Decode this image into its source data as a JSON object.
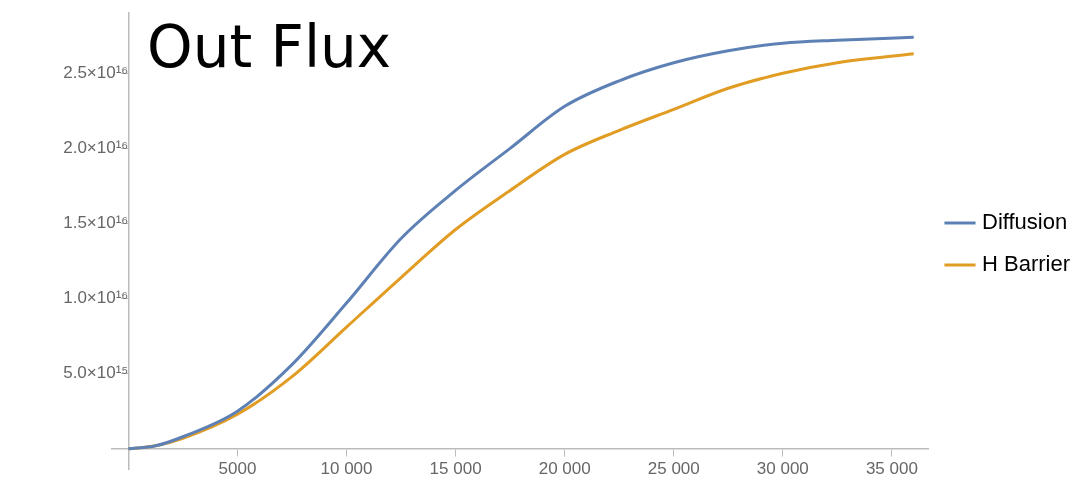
{
  "chart_data": {
    "type": "line",
    "title": "Out Flux",
    "x": [
      0,
      1250,
      2500,
      5000,
      7500,
      10000,
      12500,
      15000,
      17500,
      20000,
      22500,
      25000,
      27500,
      30000,
      32500,
      36000
    ],
    "series": [
      {
        "name": "Diffusion",
        "color": "#5e81b5",
        "values": [
          0,
          200000000000000.0,
          800000000000000.0,
          2500000000000000.0,
          5600000000000000.0,
          9700000000000000.0,
          1.4e+16,
          1.72e+16,
          2e+16,
          2.28e+16,
          2.45e+16,
          2.57e+16,
          2.65e+16,
          2.7e+16,
          2.72e+16,
          2.74e+16
        ]
      },
      {
        "name": "H Barrier",
        "color": "#e19c24",
        "values": [
          0,
          200000000000000.0,
          700000000000000.0,
          2300000000000000.0,
          4800000000000000.0,
          8100000000000000.0,
          1.14e+16,
          1.46e+16,
          1.72e+16,
          1.96e+16,
          2.12e+16,
          2.26e+16,
          2.4e+16,
          2.5e+16,
          2.57e+16,
          2.63e+16
        ]
      }
    ],
    "xlim": [
      -750,
      36700
    ],
    "ylim": [
      -1400000000000000.0,
      2.9e+16
    ],
    "xticks": [
      5000,
      {
        "value": 10000,
        "label": "10 000"
      },
      {
        "value": 15000,
        "label": "15 000"
      },
      {
        "value": 20000,
        "label": "20 000"
      },
      {
        "value": 25000,
        "label": "25 000"
      },
      {
        "value": 30000,
        "label": "30 000"
      },
      {
        "value": 35000,
        "label": "35 000"
      }
    ],
    "yticks": [
      {
        "value": 5000000000000000.0,
        "label": "5.0×10¹⁵"
      },
      {
        "value": 1e+16,
        "label": "1.0×10¹⁶"
      },
      {
        "value": 1.5e+16,
        "label": "1.5×10¹⁶"
      },
      {
        "value": 2e+16,
        "label": "2.0×10¹⁶"
      },
      {
        "value": 2.5e+16,
        "label": "2.5×10¹⁶"
      }
    ],
    "grid": false,
    "legend": "right",
    "marker": "none",
    "line_style": "solid"
  }
}
